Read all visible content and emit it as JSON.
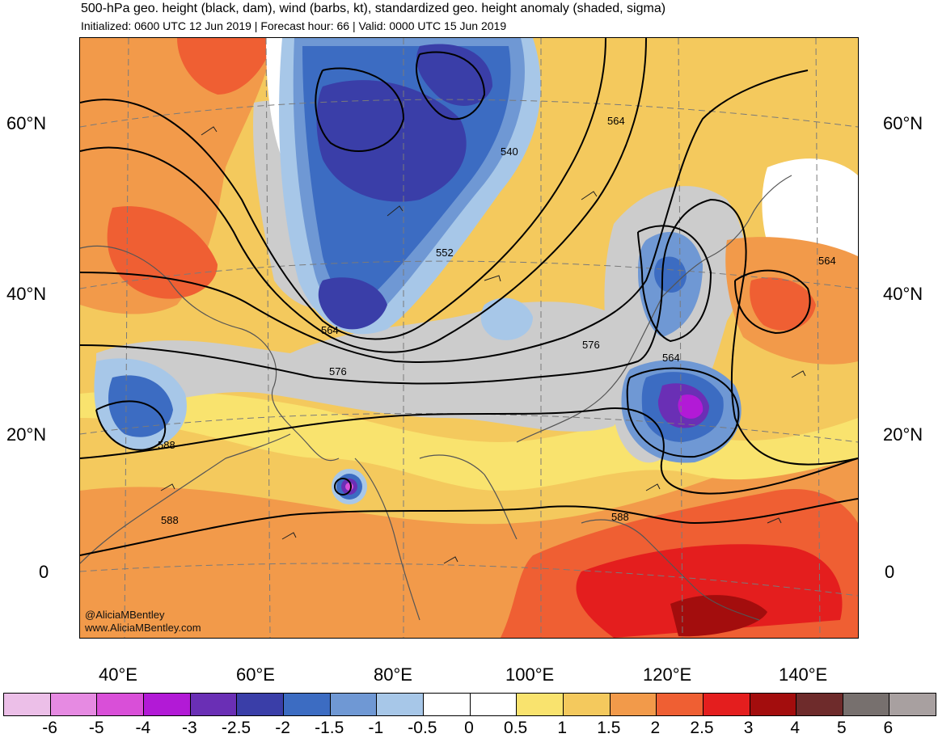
{
  "header": {
    "title": "500-hPa geo. height (black, dam), wind (barbs, kt), standardized geo. height anomaly (shaded, sigma)",
    "subtitle": "Initialized: 0600 UTC 12 Jun 2019 | Forecast hour: 66 | Valid: 0000 UTC 15 Jun 2019"
  },
  "map": {
    "lat_labels": [
      "60°N",
      "40°N",
      "20°N",
      "0"
    ],
    "lon_labels": [
      "40°E",
      "60°E",
      "80°E",
      "100°E",
      "120°E",
      "140°E"
    ],
    "contour_labels": [
      "540",
      "552",
      "564",
      "576",
      "588",
      "564",
      "564",
      "576",
      "588",
      "588",
      "564"
    ],
    "credit_line1": "@AliciaMBentley",
    "credit_line2": "www.AliciaMBentley.com"
  },
  "colorbar": {
    "ticks": [
      "-6",
      "-5",
      "-4",
      "-3",
      "-2.5",
      "-2",
      "-1.5",
      "-1",
      "-0.5",
      "0",
      "0.5",
      "1",
      "1.5",
      "2",
      "2.5",
      "3",
      "4",
      "5",
      "6"
    ],
    "colors": [
      "#ecbfe8",
      "#e68ae2",
      "#d94fd8",
      "#b21ad6",
      "#6a2fb5",
      "#3a3ea8",
      "#3c6cc2",
      "#6f98d4",
      "#a7c7e8",
      "#ffffff",
      "#ffffff",
      "#f9e36e",
      "#f4c95d",
      "#f29a4a",
      "#ef5f33",
      "#e41e1e",
      "#a30d0d",
      "#6e2b2b",
      "#77706e",
      "#a8a0a0"
    ]
  }
}
